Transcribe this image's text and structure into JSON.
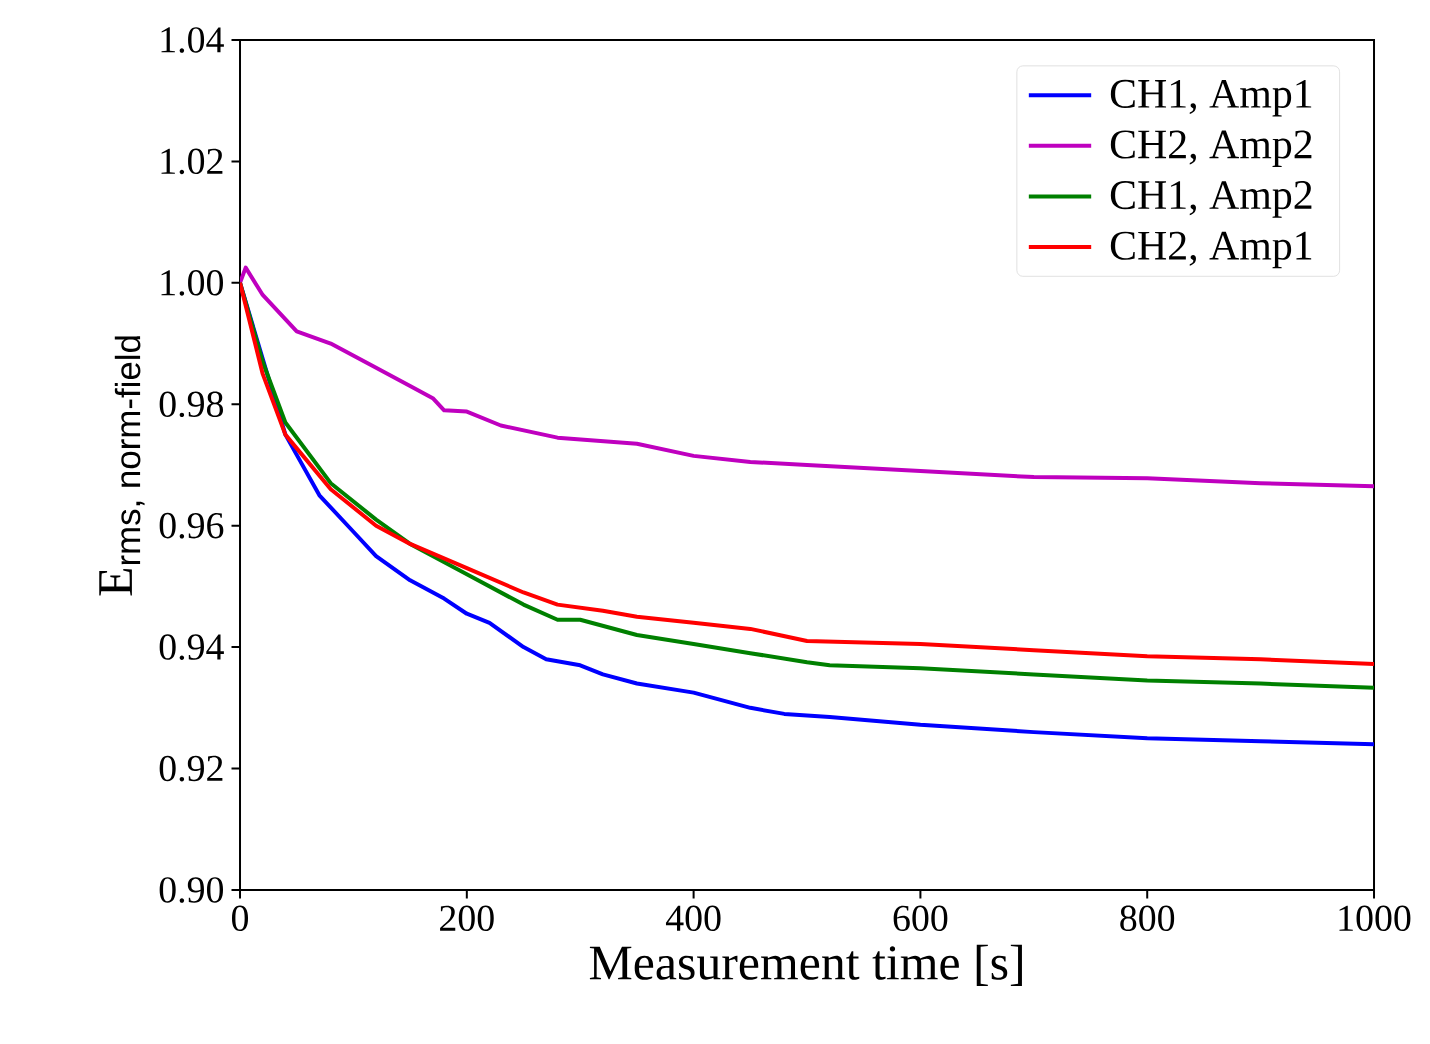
{
  "chart_data": {
    "type": "line",
    "xlabel": "Measurement time [s]",
    "ylabel": "\\text{E}_{\\text{\\sffamily rms, norm-field}}",
    "xlim": [
      0,
      1000
    ],
    "ylim": [
      0.9,
      1.04
    ],
    "xticks": [
      0,
      200,
      400,
      600,
      800,
      1000
    ],
    "yticks": [
      {
        "value": 0.9,
        "label": "0.90"
      },
      {
        "value": 0.92,
        "label": "0.92"
      },
      {
        "value": 0.94,
        "label": "0.94"
      },
      {
        "value": 0.96,
        "label": "0.96"
      },
      {
        "value": 0.98,
        "label": "0.98"
      },
      {
        "value": 1.0,
        "label": "1.00"
      },
      {
        "value": 1.02,
        "label": "1.02"
      },
      {
        "value": 1.04,
        "label": "1.04"
      }
    ],
    "grid": false,
    "legend": "top right",
    "marker": "none",
    "line_style": "solid",
    "series": [
      {
        "name": "CH1, Amp1",
        "color": "#0000ff",
        "x": [
          0,
          20,
          40,
          70,
          100,
          120,
          150,
          180,
          200,
          220,
          250,
          270,
          300,
          320,
          350,
          400,
          450,
          480,
          520,
          600,
          700,
          800,
          900,
          1000
        ],
        "values": [
          1.0,
          null,
          0.975,
          0.965,
          0.959,
          0.955,
          0.951,
          0.948,
          0.9455,
          0.944,
          0.94,
          0.938,
          0.937,
          0.9355,
          0.934,
          0.9325,
          0.93,
          0.929,
          0.9285,
          0.9272,
          0.926,
          0.925,
          0.9245,
          0.924
        ]
      },
      {
        "name": "CH2, Amp2",
        "color": "#bf00bf",
        "x": [
          0,
          5,
          20,
          50,
          80,
          120,
          150,
          170,
          180,
          200,
          230,
          280,
          350,
          400,
          450,
          500,
          600,
          700,
          800,
          900,
          1000
        ],
        "values": [
          1.0,
          1.0025,
          0.998,
          0.992,
          0.99,
          0.986,
          0.983,
          0.981,
          0.979,
          0.9788,
          0.9765,
          0.9745,
          0.9735,
          0.9715,
          0.9705,
          0.97,
          0.969,
          0.968,
          0.9678,
          0.967,
          0.9665
        ]
      },
      {
        "name": "CH1, Amp2",
        "color": "#008000",
        "x": [
          0,
          20,
          40,
          80,
          120,
          150,
          200,
          250,
          280,
          300,
          350,
          400,
          450,
          500,
          520,
          600,
          700,
          800,
          900,
          1000
        ],
        "values": [
          1.0,
          0.987,
          0.977,
          0.967,
          0.961,
          0.957,
          0.952,
          0.947,
          0.9445,
          0.9445,
          0.942,
          0.9405,
          0.939,
          0.9375,
          0.937,
          0.9365,
          0.9355,
          0.9345,
          0.934,
          0.9333
        ]
      },
      {
        "name": "CH2, Amp1",
        "color": "#ff0000",
        "x": [
          0,
          20,
          40,
          80,
          120,
          150,
          200,
          250,
          280,
          320,
          350,
          400,
          450,
          500,
          600,
          700,
          800,
          900,
          1000
        ],
        "values": [
          1.0,
          0.985,
          0.975,
          0.966,
          0.96,
          0.957,
          0.953,
          0.949,
          0.947,
          0.946,
          0.945,
          0.944,
          0.943,
          0.941,
          0.9405,
          0.9395,
          0.9385,
          0.938,
          0.9372
        ]
      }
    ]
  }
}
